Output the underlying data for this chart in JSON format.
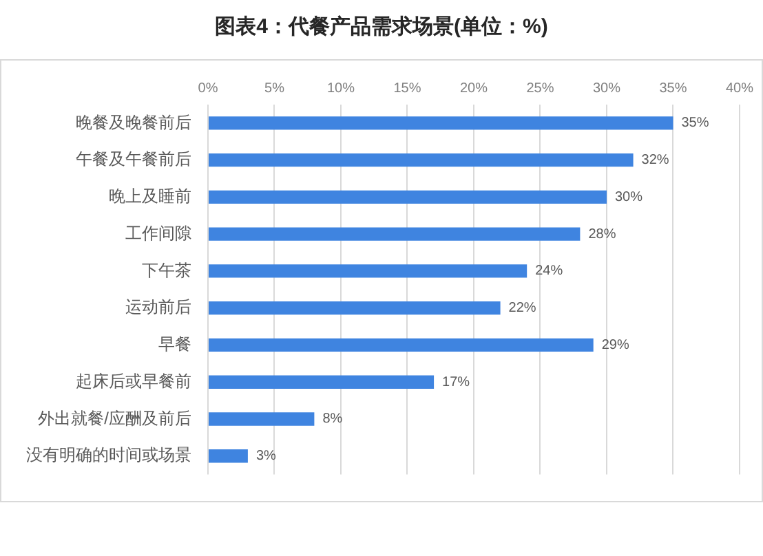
{
  "chart_data": {
    "type": "bar",
    "orientation": "horizontal",
    "title": "图表4：代餐产品需求场景(单位：%)",
    "categories": [
      "晚餐及晚餐前后",
      "午餐及午餐前后",
      "晚上及睡前",
      "工作间隙",
      "下午茶",
      "运动前后",
      "早餐",
      "起床后或早餐前",
      "外出就餐/应酬及前后",
      "没有明确的时间或场景"
    ],
    "values": [
      35,
      32,
      30,
      28,
      24,
      22,
      29,
      17,
      8,
      3
    ],
    "color": "#3f84e0",
    "value_labels": [
      "35%",
      "32%",
      "30%",
      "28%",
      "24%",
      "22%",
      "29%",
      "17%",
      "8%",
      "3%"
    ],
    "xlim": [
      0,
      40
    ],
    "xticks": [
      {
        "value": 0,
        "label": "0%"
      },
      {
        "value": 5,
        "label": "5%"
      },
      {
        "value": 10,
        "label": "10%"
      },
      {
        "value": 15,
        "label": "15%"
      },
      {
        "value": 20,
        "label": "20%"
      },
      {
        "value": 25,
        "label": "25%"
      },
      {
        "value": 30,
        "label": "30%"
      },
      {
        "value": 35,
        "label": "35%"
      },
      {
        "value": 40,
        "label": "40%"
      }
    ],
    "grid": "x",
    "legend": false
  }
}
